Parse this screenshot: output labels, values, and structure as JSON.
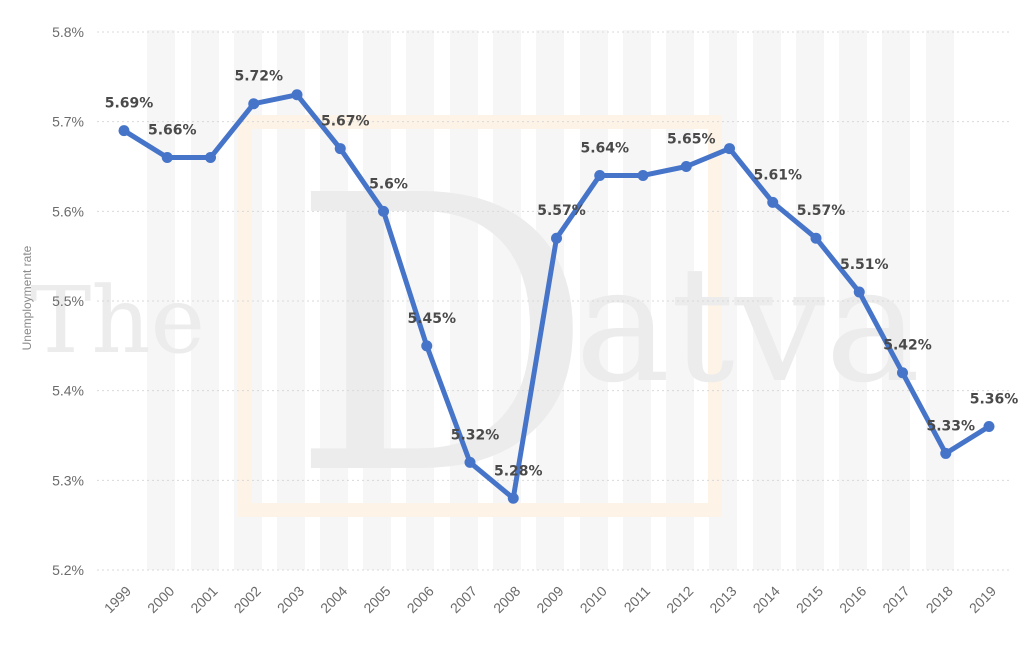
{
  "chart_data": {
    "type": "line",
    "ylabel": "Unemployment rate",
    "ylim": [
      5.2,
      5.8
    ],
    "y_ticks": [
      "5.2%",
      "5.3%",
      "5.4%",
      "5.5%",
      "5.6%",
      "5.7%",
      "5.8%"
    ],
    "grid": true,
    "series": [
      {
        "x": [
          "1999",
          "2000",
          "2001",
          "2002",
          "2003",
          "2004",
          "2005",
          "2006",
          "2007",
          "2008",
          "2009",
          "2010",
          "2011",
          "2012",
          "2013",
          "2014",
          "2015",
          "2016",
          "2017",
          "2018",
          "2019"
        ],
        "values": [
          5.69,
          5.66,
          5.66,
          5.72,
          5.73,
          5.67,
          5.6,
          5.45,
          5.32,
          5.28,
          5.57,
          5.64,
          5.64,
          5.65,
          5.67,
          5.61,
          5.57,
          5.51,
          5.42,
          5.33,
          5.36
        ],
        "data_labels": [
          "5.69%",
          "5.66%",
          "",
          "5.72%",
          "",
          "5.67%",
          "5.6%",
          "5.45%",
          "5.32%",
          "5.28%",
          "5.57%",
          "5.64%",
          "",
          "5.65%",
          "",
          "5.61%",
          "5.57%",
          "5.51%",
          "5.42%",
          "5.33%",
          "5.36%"
        ]
      }
    ],
    "colors": {
      "line": "#4574c9",
      "grid": "#d9d9d9"
    }
  },
  "watermark": {
    "text": "The Datva"
  }
}
